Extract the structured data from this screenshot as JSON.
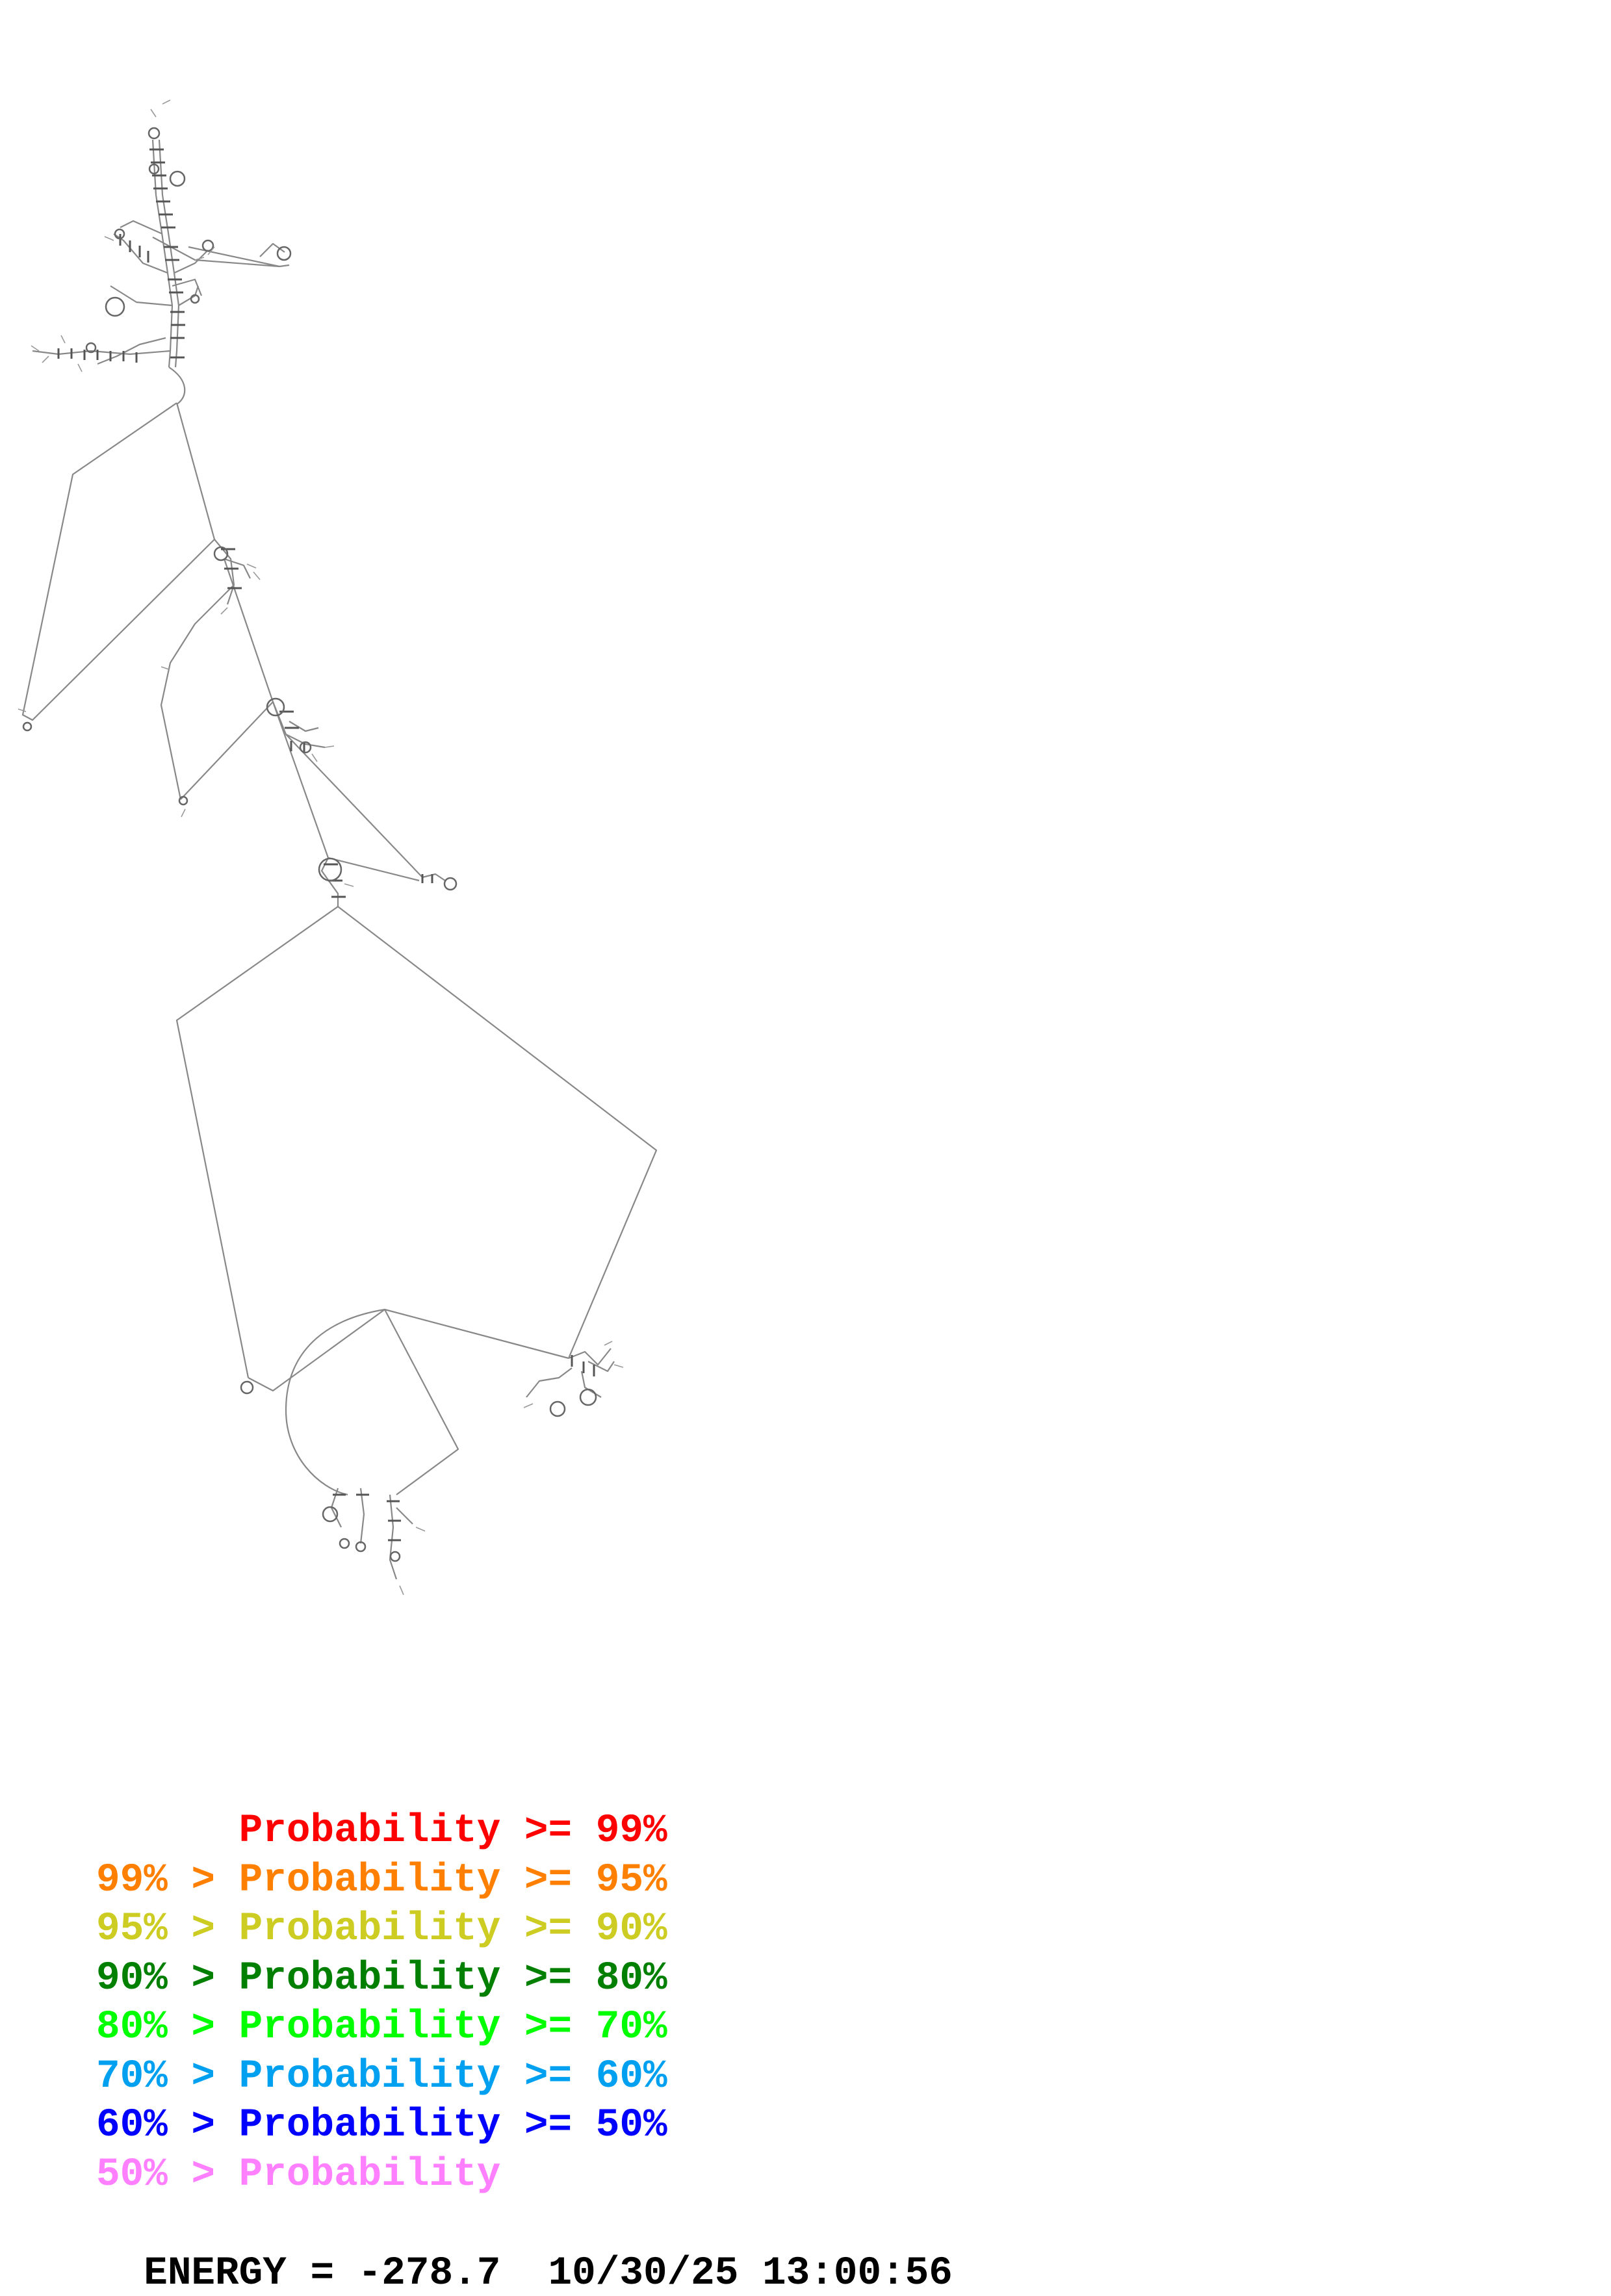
{
  "legend": {
    "items": [
      {
        "prefix": "",
        "range": "Probability >= 99%",
        "color": "#ff0000"
      },
      {
        "prefix": "99% > ",
        "range": "Probability >= 95%",
        "color": "#ff7f00"
      },
      {
        "prefix": "95% > ",
        "range": "Probability >= 90%",
        "color": "#cccc22"
      },
      {
        "prefix": "90% > ",
        "range": "Probability >= 80%",
        "color": "#007f00"
      },
      {
        "prefix": "80% > ",
        "range": "Probability >= 70%",
        "color": "#00ff00"
      },
      {
        "prefix": "70% > ",
        "range": "Probability >= 60%",
        "color": "#00a0f0"
      },
      {
        "prefix": "60% > ",
        "range": "Probability >= 50%",
        "color": "#0000ff"
      },
      {
        "prefix": "50% > ",
        "range": "Probability",
        "color": "#ff80ff"
      }
    ]
  },
  "footer": {
    "energy_label": "ENERGY = ",
    "energy_value": "-278.7",
    "date": "10/30/25",
    "time": "13:00:56"
  },
  "structure": {
    "backbone_color": "#888888",
    "pair_color": "#555555"
  }
}
